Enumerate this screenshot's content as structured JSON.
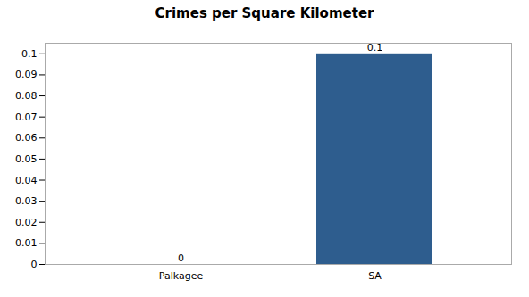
{
  "chart_data": {
    "type": "bar",
    "title": "Crimes per Square Kilometer",
    "categories": [
      "Palkagee",
      "SA"
    ],
    "values": [
      0.0,
      0.1
    ],
    "color": "#2e5d8e",
    "ylim": [
      0,
      0.105
    ],
    "yticks": [
      0,
      0.01,
      0.02,
      0.03,
      0.04,
      0.05,
      0.06,
      0.07,
      0.08,
      0.09,
      0.1
    ],
    "grid": false,
    "data_labels": true
  }
}
